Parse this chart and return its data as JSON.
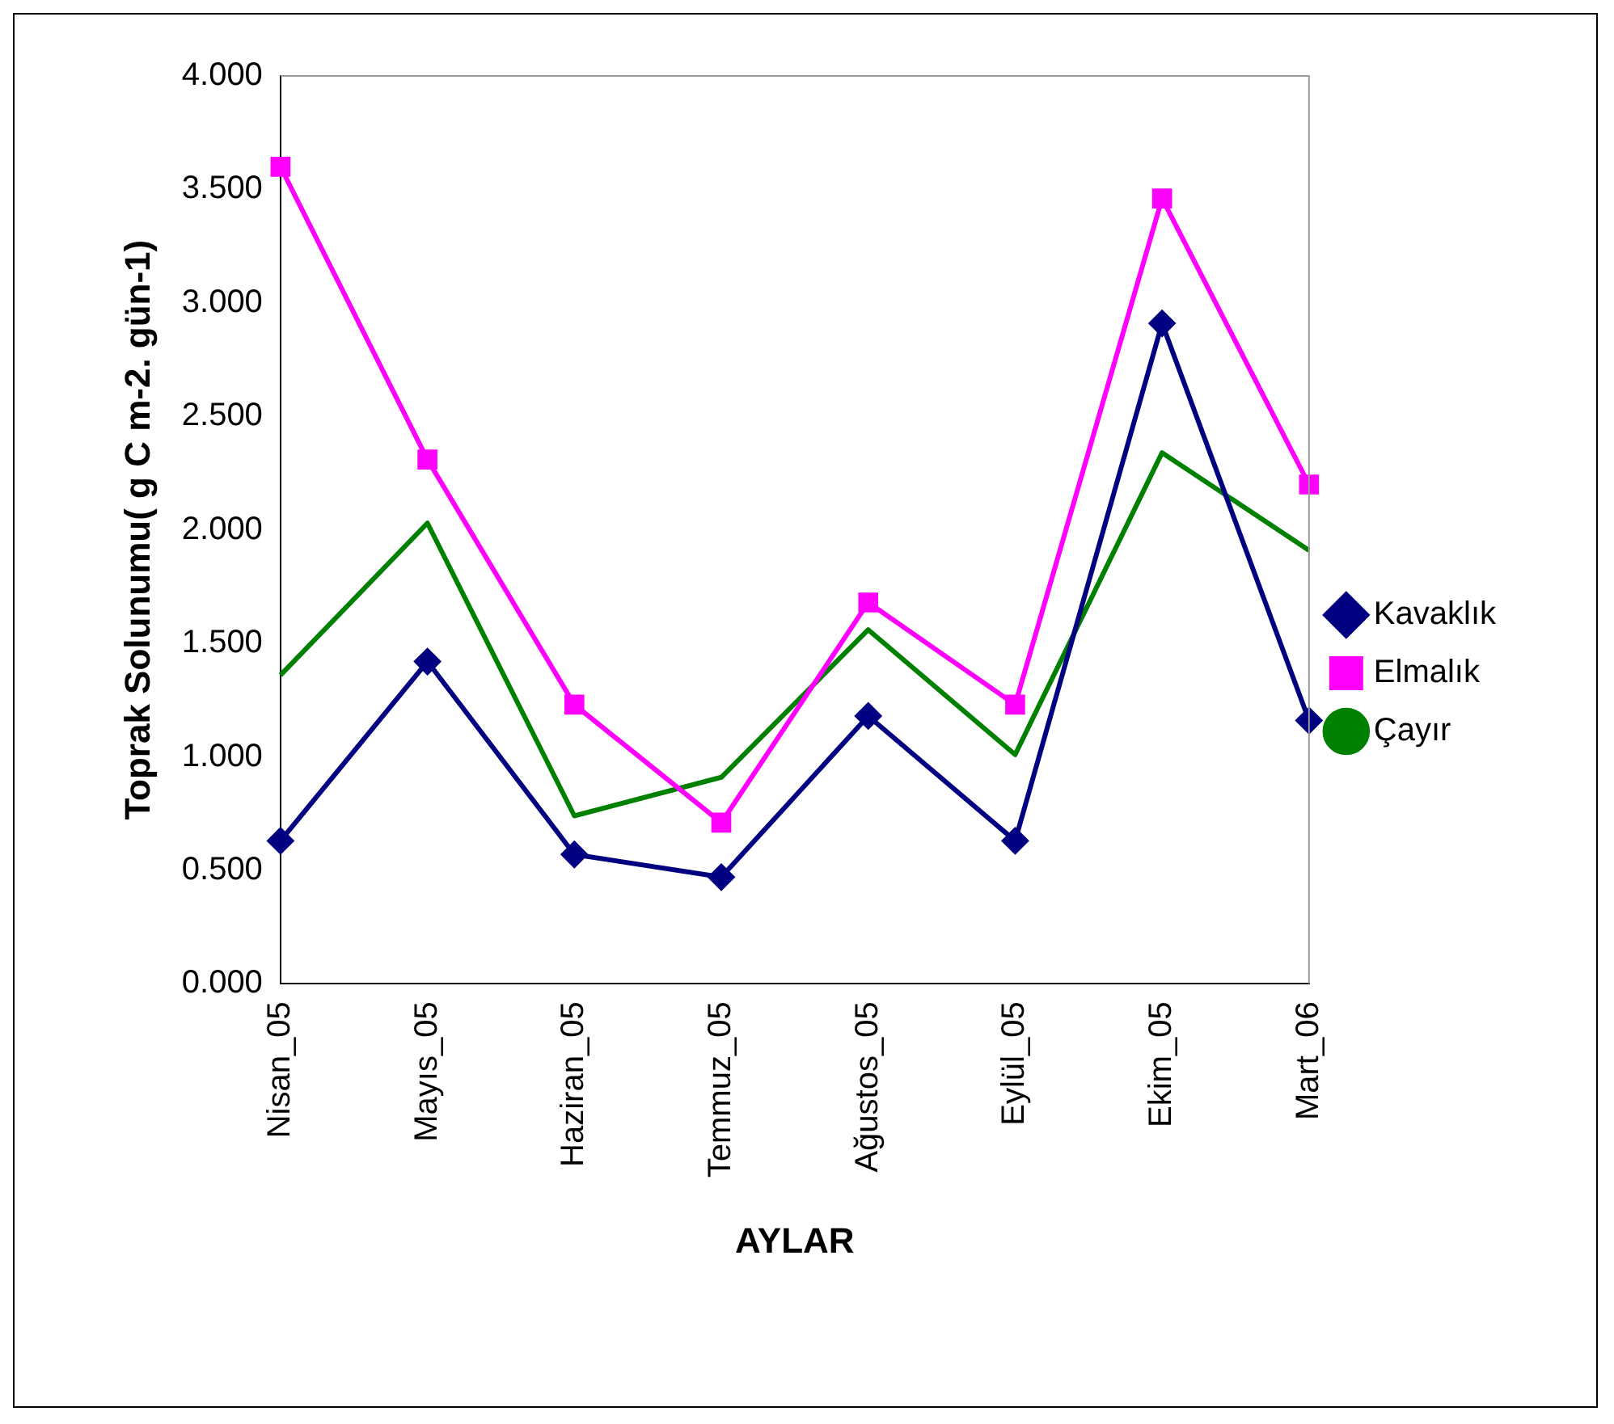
{
  "chart_data": {
    "type": "line",
    "xlabel": "AYLAR",
    "ylabel": "Toprak Solunumu( g C m-2. gün-1)",
    "categories": [
      "Nisan_05",
      "Mayıs_05",
      "Haziran_05",
      "Temmuz_05",
      "Ağustos_05",
      "Eylül_05",
      "Ekim_05",
      "Mart_06"
    ],
    "series": [
      {
        "name": "Kavaklık",
        "color": "#000080",
        "marker": "diamond",
        "values": [
          0.63,
          1.42,
          0.57,
          0.47,
          1.18,
          0.63,
          2.91,
          1.16
        ]
      },
      {
        "name": "Elmalık",
        "color": "#ff00ff",
        "marker": "square",
        "values": [
          3.6,
          2.31,
          1.23,
          0.71,
          1.68,
          1.23,
          3.46,
          2.2
        ]
      },
      {
        "name": "Çayır",
        "color": "#008000",
        "marker": "none",
        "values": [
          1.36,
          2.03,
          0.74,
          0.91,
          1.56,
          1.01,
          2.34,
          1.91
        ]
      }
    ],
    "ylim": [
      0,
      4
    ],
    "yticks": [
      {
        "value": 0,
        "label": "0.000"
      },
      {
        "value": 0.5,
        "label": "0.500"
      },
      {
        "value": 1,
        "label": "1.000"
      },
      {
        "value": 1.5,
        "label": "1.500"
      },
      {
        "value": 2,
        "label": "2.000"
      },
      {
        "value": 2.5,
        "label": "2.500"
      },
      {
        "value": 3,
        "label": "3.000"
      },
      {
        "value": 3.5,
        "label": "3.500"
      },
      {
        "value": 4,
        "label": "4.000"
      }
    ],
    "grid": false,
    "legend": "right",
    "line_style": "solid"
  }
}
